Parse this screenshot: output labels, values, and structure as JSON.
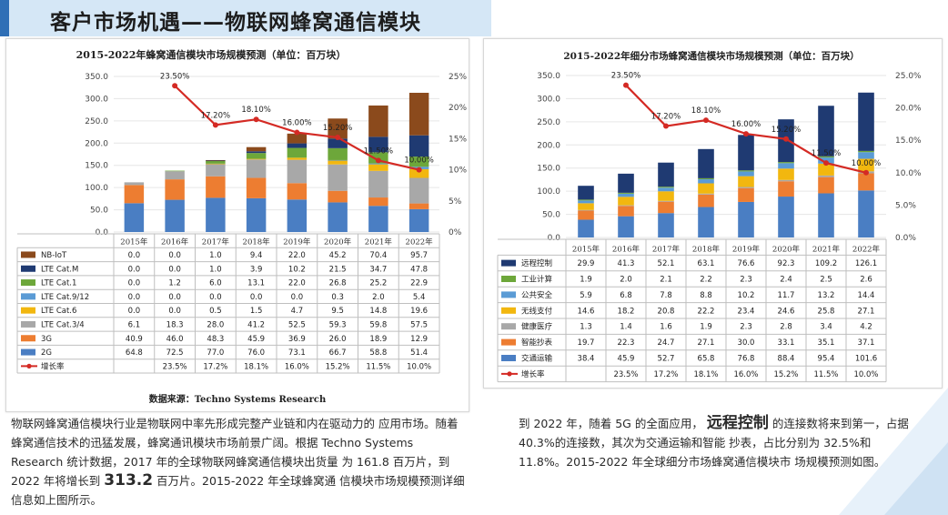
{
  "header": {
    "title": "客户市场机遇——物联网蜂窝通信模块"
  },
  "colors": {
    "line": "#d42a24",
    "banner": "#d5e7f6",
    "accent": "#2f6fb6"
  },
  "chart_data": [
    {
      "type": "bar",
      "stacked": true,
      "title": "2015-2022年蜂窝通信模块市场规模预测（单位：百万块）",
      "categories": [
        "2015年",
        "2016年",
        "2017年",
        "2018年",
        "2019年",
        "2020年",
        "2021年",
        "2022年"
      ],
      "ylim": [
        0,
        350
      ],
      "yticks": [
        "0.0",
        "50.0",
        "100.0",
        "150.0",
        "200.0",
        "250.0",
        "300.0",
        "350.0"
      ],
      "y2lim": [
        0,
        25
      ],
      "y2ticks": [
        "0%",
        "5%",
        "10%",
        "15%",
        "20%",
        "25%"
      ],
      "series_top_first": [
        {
          "name": "NB-IoT",
          "color": "#8b4a1c",
          "values": [
            0.0,
            0.0,
            1.0,
            9.4,
            22.0,
            45.2,
            70.4,
            95.7
          ],
          "labels": [
            "0.0",
            "0.0",
            "1.0",
            "9.4",
            "22.0",
            "45.2",
            "70.4",
            "95.7"
          ]
        },
        {
          "name": "LTE Cat.M",
          "color": "#1f3a72",
          "values": [
            0.0,
            0.0,
            1.0,
            3.9,
            10.2,
            21.5,
            34.7,
            47.8
          ],
          "labels": [
            "0.0",
            "0.0",
            "1.0",
            "3.9",
            "10.2",
            "21.5",
            "34.7",
            "47.8"
          ]
        },
        {
          "name": "LTE Cat.1",
          "color": "#6da73a",
          "values": [
            0.0,
            1.2,
            6.0,
            13.1,
            22.0,
            26.8,
            25.2,
            22.9
          ],
          "labels": [
            "0.0",
            "1.2",
            "6.0",
            "13.1",
            "22.0",
            "26.8",
            "25.2",
            "22.9"
          ]
        },
        {
          "name": "LTE Cat.9/12",
          "color": "#5a9bd5",
          "values": [
            0.0,
            0.0,
            0.0,
            0.0,
            0.0,
            0.3,
            2.0,
            5.4
          ],
          "labels": [
            "0.0",
            "0.0",
            "0.0",
            "0.0",
            "0.0",
            "0.3",
            "2.0",
            "5.4"
          ]
        },
        {
          "name": "LTE Cat.6",
          "color": "#f2b70f",
          "values": [
            0.0,
            0.0,
            0.5,
            1.5,
            4.7,
            9.5,
            14.8,
            19.6
          ],
          "labels": [
            "0.0",
            "0.0",
            "0.5",
            "1.5",
            "4.7",
            "9.5",
            "14.8",
            "19.6"
          ]
        },
        {
          "name": "LTE Cat.3/4",
          "color": "#a8a8a8",
          "values": [
            6.1,
            18.3,
            28.0,
            41.2,
            52.5,
            59.3,
            59.8,
            57.5
          ],
          "labels": [
            "6.1",
            "18.3",
            "28.0",
            "41.2",
            "52.5",
            "59.3",
            "59.8",
            "57.5"
          ]
        },
        {
          "name": "3G",
          "color": "#ed7d31",
          "values": [
            40.9,
            46.0,
            48.3,
            45.9,
            36.9,
            26.0,
            18.9,
            12.9
          ],
          "labels": [
            "40.9",
            "46.0",
            "48.3",
            "45.9",
            "36.9",
            "26.0",
            "18.9",
            "12.9"
          ]
        },
        {
          "name": "2G",
          "color": "#4a7ec3",
          "values": [
            64.8,
            72.5,
            77.0,
            76.0,
            73.1,
            66.7,
            58.8,
            51.4
          ],
          "labels": [
            "64.8",
            "72.5",
            "77.0",
            "76.0",
            "73.1",
            "66.7",
            "58.8",
            "51.4"
          ]
        }
      ],
      "growth": {
        "name": "增长率",
        "values": [
          null,
          23.5,
          17.2,
          18.1,
          16.0,
          15.2,
          11.5,
          10.0
        ],
        "table_labels": [
          "",
          "23.5%",
          "17.2%",
          "18.1%",
          "16.0%",
          "15.2%",
          "11.5%",
          "10.0%"
        ],
        "point_labels": [
          "",
          "23.50%",
          "17.20%",
          "18.10%",
          "16.00%",
          "15.20%",
          "11.50%",
          "10.00%"
        ]
      },
      "source": "数据来源：Techno Systems Research"
    },
    {
      "type": "bar",
      "stacked": true,
      "title": "2015-2022年细分市场蜂窝通信模块市场规模预测（单位：百万块）",
      "categories": [
        "2015年",
        "2016年",
        "2017年",
        "2018年",
        "2019年",
        "2020年",
        "2021年",
        "2022年"
      ],
      "ylim": [
        0,
        350
      ],
      "yticks": [
        "0.0",
        "50.0",
        "100.0",
        "150.0",
        "200.0",
        "250.0",
        "300.0",
        "350.0"
      ],
      "y2lim": [
        0,
        25
      ],
      "y2ticks": [
        "0.0%",
        "5.0%",
        "10.0%",
        "15.0%",
        "20.0%",
        "25.0%"
      ],
      "series_top_first": [
        {
          "name": "远程控制",
          "color": "#1f3a72",
          "values": [
            29.9,
            41.3,
            52.1,
            63.1,
            76.6,
            92.3,
            109.2,
            126.1
          ],
          "labels": [
            "29.9",
            "41.3",
            "52.1",
            "63.1",
            "76.6",
            "92.3",
            "109.2",
            "126.1"
          ]
        },
        {
          "name": "工业计算",
          "color": "#6da73a",
          "values": [
            1.9,
            2.0,
            2.1,
            2.2,
            2.3,
            2.4,
            2.5,
            2.6
          ],
          "labels": [
            "1.9",
            "2.0",
            "2.1",
            "2.2",
            "2.3",
            "2.4",
            "2.5",
            "2.6"
          ]
        },
        {
          "name": "公共安全",
          "color": "#5a9bd5",
          "values": [
            5.9,
            6.8,
            7.8,
            8.8,
            10.2,
            11.7,
            13.2,
            14.4
          ],
          "labels": [
            "5.9",
            "6.8",
            "7.8",
            "8.8",
            "10.2",
            "11.7",
            "13.2",
            "14.4"
          ]
        },
        {
          "name": "无线支付",
          "color": "#f2b70f",
          "values": [
            14.6,
            18.2,
            20.8,
            22.2,
            23.4,
            24.6,
            25.8,
            27.1
          ],
          "labels": [
            "14.6",
            "18.2",
            "20.8",
            "22.2",
            "23.4",
            "24.6",
            "25.8",
            "27.1"
          ]
        },
        {
          "name": "健康医疗",
          "color": "#a8a8a8",
          "values": [
            1.3,
            1.4,
            1.6,
            1.9,
            2.3,
            2.8,
            3.4,
            4.2
          ],
          "labels": [
            "1.3",
            "1.4",
            "1.6",
            "1.9",
            "2.3",
            "2.8",
            "3.4",
            "4.2"
          ]
        },
        {
          "name": "智能抄表",
          "color": "#ed7d31",
          "values": [
            19.7,
            22.3,
            24.7,
            27.1,
            30.0,
            33.1,
            35.1,
            37.1
          ],
          "labels": [
            "19.7",
            "22.3",
            "24.7",
            "27.1",
            "30.0",
            "33.1",
            "35.1",
            "37.1"
          ]
        },
        {
          "name": "交通运输",
          "color": "#4a7ec3",
          "values": [
            38.4,
            45.9,
            52.7,
            65.8,
            76.8,
            88.4,
            95.4,
            101.6
          ],
          "labels": [
            "38.4",
            "45.9",
            "52.7",
            "65.8",
            "76.8",
            "88.4",
            "95.4",
            "101.6"
          ]
        }
      ],
      "growth": {
        "name": "增长率",
        "values": [
          null,
          23.5,
          17.2,
          18.1,
          16.0,
          15.2,
          11.5,
          10.0
        ],
        "table_labels": [
          "",
          "23.5%",
          "17.2%",
          "18.1%",
          "16.0%",
          "15.2%",
          "11.5%",
          "10.0%"
        ],
        "point_labels": [
          "",
          "23.50%",
          "17.20%",
          "18.10%",
          "16.00%",
          "15.20%",
          "11.50%",
          "10.00%"
        ]
      }
    }
  ],
  "text": {
    "left_para_1": "物联网蜂窝通信模块行业是物联网中率先形成完整产业链和内在驱动力的 应用市场。随着蜂窝通信技术的迅猛发展，蜂窝通讯模块市场前景广阔。根据 Techno Systems Research 统计数据，2017 年的全球物联网蜂窝通信模块出货量 为 161.8 百万片，到 2022 年将增长到",
    "left_big": "313.2",
    "left_para_2": "百万片。2015-2022 年全球蜂窝通 信模块市场规模预测详细信息如上图所示。",
    "right_para_1": "到 2022 年，随着 5G 的全面应用，",
    "right_big": "远程控制",
    "right_para_2": "的连接数将来到第一，占据 40.3%的连接数，其次为交通运输和智能 抄表，占比分别为 32.5%和 11.8%。2015-2022 年全球细分市场蜂窝通信模块市 场规模预测如图。"
  }
}
